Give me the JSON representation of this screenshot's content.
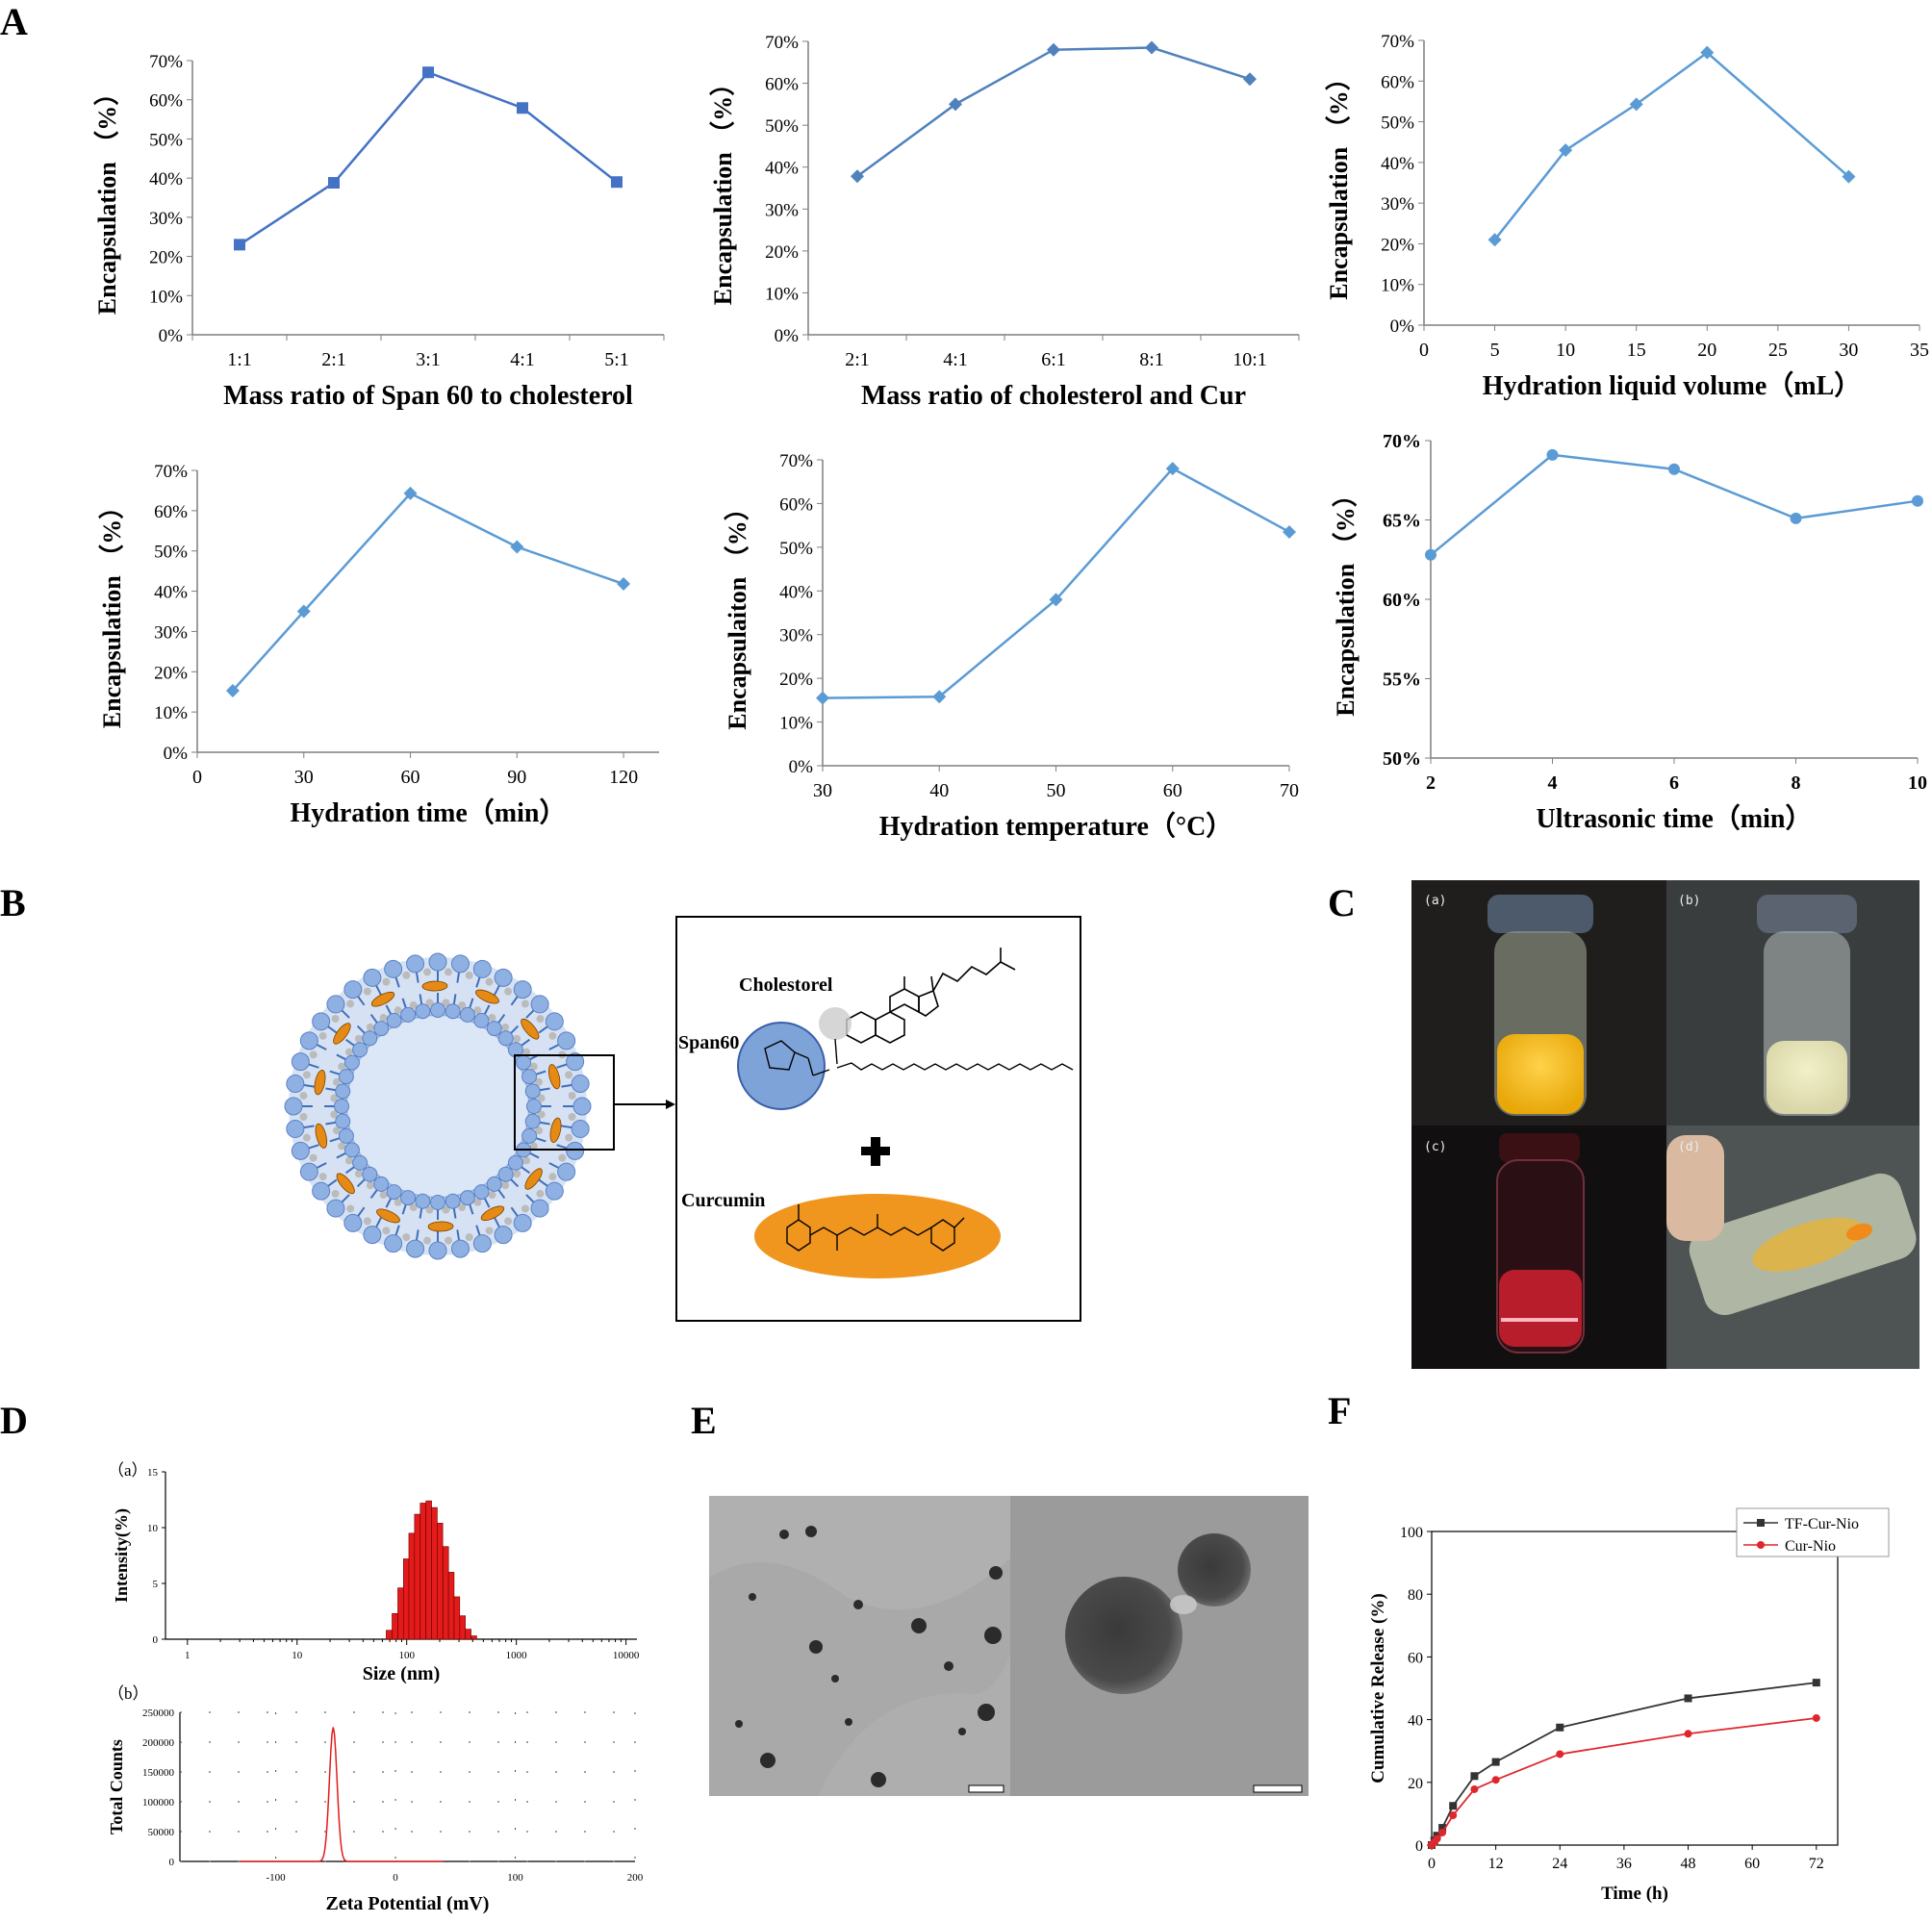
{
  "panel_labels": {
    "A": "A",
    "B": "B",
    "C": "C",
    "D": "D",
    "E": "E",
    "F": "F"
  },
  "chart_data": [
    {
      "id": "A1",
      "type": "line",
      "color": "#4472c4",
      "marker": "square",
      "categories": [
        "1:1",
        "2:1",
        "3:1",
        "4:1",
        "5:1"
      ],
      "values": [
        23,
        38.8,
        67,
        57.9,
        39
      ],
      "ylim": [
        0,
        70
      ],
      "yticks": [
        0,
        10,
        20,
        30,
        40,
        50,
        60,
        70
      ],
      "ysuffix": "%",
      "xlabel": "Mass ratio of Span 60 to cholesterol",
      "ylabel": "Encapsulation （%）"
    },
    {
      "id": "A2",
      "type": "line",
      "color": "#4f81bd",
      "marker": "diamond",
      "categories": [
        "2:1",
        "4:1",
        "6:1",
        "8:1",
        "10:1"
      ],
      "values": [
        37.8,
        55,
        68,
        68.5,
        61
      ],
      "ylim": [
        0,
        70
      ],
      "yticks": [
        0,
        10,
        20,
        30,
        40,
        50,
        60,
        70
      ],
      "ysuffix": "%",
      "xlabel": "Mass ratio of cholesterol and Cur",
      "ylabel": "Encapsulation （%）"
    },
    {
      "id": "A3",
      "type": "line",
      "color": "#5b9bd5",
      "marker": "diamond",
      "x": [
        5,
        10,
        15,
        20,
        30
      ],
      "values": [
        21,
        43,
        54.3,
        67,
        36.5
      ],
      "xlim": [
        0,
        35
      ],
      "xticks": [
        0,
        5,
        10,
        15,
        20,
        25,
        30,
        35
      ],
      "ylim": [
        0,
        70
      ],
      "yticks": [
        0,
        10,
        20,
        30,
        40,
        50,
        60,
        70
      ],
      "ysuffix": "%",
      "xlabel": "Hydration liquid volume（mL）",
      "ylabel": "Encapsulation （%）"
    },
    {
      "id": "A4",
      "type": "line",
      "color": "#5b9bd5",
      "marker": "diamond",
      "x": [
        10,
        30,
        60,
        90,
        120
      ],
      "values": [
        15.3,
        35,
        64.3,
        51,
        41.8
      ],
      "xlim": [
        0,
        130
      ],
      "xticks": [
        0,
        30,
        60,
        90,
        120
      ],
      "ylim": [
        0,
        70
      ],
      "yticks": [
        0,
        10,
        20,
        30,
        40,
        50,
        60,
        70
      ],
      "ysuffix": "%",
      "xlabel": "Hydration time（min）",
      "ylabel": "Encapsulation （%）"
    },
    {
      "id": "A5",
      "type": "line",
      "color": "#5b9bd5",
      "marker": "diamond",
      "x": [
        30,
        40,
        50,
        60,
        70
      ],
      "values": [
        15.5,
        15.8,
        38,
        68,
        53.5
      ],
      "xlim": [
        30,
        70
      ],
      "xticks": [
        30,
        40,
        50,
        60,
        70
      ],
      "ylim": [
        0,
        70
      ],
      "yticks": [
        0,
        10,
        20,
        30,
        40,
        50,
        60,
        70
      ],
      "ysuffix": "%",
      "xlabel": "Hydration temperature（°C）",
      "ylabel": "Encapsulaiton （%）"
    },
    {
      "id": "A6",
      "type": "line",
      "color": "#5b9bd5",
      "marker": "circle",
      "x": [
        2,
        4,
        6,
        8,
        10
      ],
      "values": [
        62.8,
        69.1,
        68.2,
        65.1,
        66.2
      ],
      "xlim": [
        2,
        10
      ],
      "xticks": [
        2,
        4,
        6,
        8,
        10
      ],
      "ylim": [
        50,
        70
      ],
      "yticks": [
        50,
        55,
        60,
        65,
        70
      ],
      "ysuffix": "%",
      "xlabel": "Ultrasonic time（min）",
      "ylabel": "Encapsulation （%）"
    },
    {
      "id": "Da",
      "type": "bar",
      "title": "（a）",
      "x_log_ticks": [
        "1",
        "10",
        "100",
        "1000",
        "10000"
      ],
      "bins_size_nm": [
        69,
        78,
        88,
        99,
        111,
        125,
        141,
        159,
        179,
        201,
        227,
        255,
        287,
        323,
        364,
        410
      ],
      "bins_intensity": [
        0.8,
        2.3,
        4.6,
        7.2,
        9.5,
        11.2,
        12.2,
        12.4,
        11.8,
        10.4,
        8.3,
        6.0,
        3.8,
        2.1,
        0.9,
        0.3
      ],
      "ylim": [
        0,
        15
      ],
      "yticks": [
        0,
        5,
        10,
        15
      ],
      "xlabel": "Size (nm)",
      "ylabel": "Intensity(%)"
    },
    {
      "id": "Db",
      "type": "line",
      "title": "（b）",
      "peak_mV": -52,
      "peak_counts": 225000,
      "xlim": [
        -180,
        200
      ],
      "xticks": [
        -100,
        0,
        100,
        200
      ],
      "ylim": [
        0,
        250000
      ],
      "yticks": [
        0,
        50000,
        100000,
        150000,
        200000,
        250000
      ],
      "xlabel": "Zeta Potential (mV)",
      "ylabel": "Total Counts"
    },
    {
      "id": "F",
      "type": "line",
      "x": [
        0,
        0.5,
        1,
        2,
        4,
        8,
        12,
        24,
        48,
        72
      ],
      "series": [
        {
          "name": "TF-Cur-Nio",
          "color": "#333333",
          "marker": "square",
          "values": [
            0,
            1.5,
            3,
            5.5,
            12.5,
            22,
            26.5,
            37.5,
            46.8,
            51.8
          ]
        },
        {
          "name": "Cur-Nio",
          "color": "#e0262c",
          "marker": "circle",
          "values": [
            0,
            1,
            2,
            4,
            9.5,
            17.8,
            20.8,
            29,
            35.5,
            40.5
          ]
        }
      ],
      "xlim": [
        0,
        76
      ],
      "xticks": [
        0,
        12,
        24,
        36,
        48,
        60,
        72
      ],
      "ylim": [
        0,
        100
      ],
      "yticks": [
        0,
        20,
        40,
        60,
        80,
        100
      ],
      "xlabel": "Time (h)",
      "ylabel": "Cumulative Release (%)",
      "legend_position": "top-right"
    }
  ],
  "schematic": {
    "cholesterol_label": "Cholestorel",
    "span_label": "Span60",
    "curcumin_label": "Curcumin"
  },
  "photos": {
    "a": "(a)",
    "b": "(b)",
    "c": "(c)",
    "d": "(d)"
  }
}
